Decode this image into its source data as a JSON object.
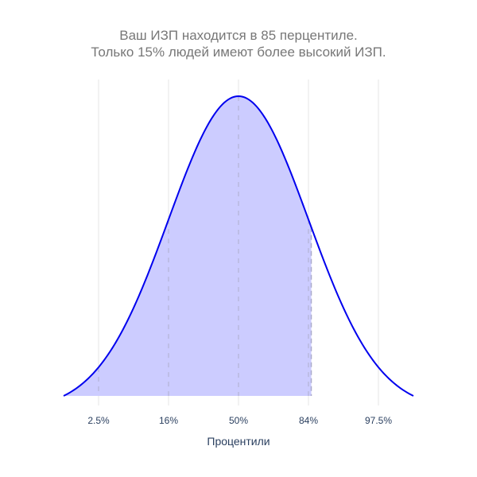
{
  "chart_data": {
    "type": "area",
    "title_line1": "Ваш ИЗП находится в 85 перцентиле.",
    "title_line2": "Только 15% людей имеют более высокий ИЗП.",
    "xlabel": "Процентили",
    "ylabel": "",
    "distribution": "normal",
    "x_range": [
      -2.5,
      2.5
    ],
    "peak": 0,
    "ticks": [
      {
        "value": -2,
        "label": "2.5%"
      },
      {
        "value": -1,
        "label": "16%"
      },
      {
        "value": 0,
        "label": "50%"
      },
      {
        "value": 1,
        "label": "84%"
      },
      {
        "value": 2,
        "label": "97.5%"
      }
    ],
    "shaded_until": 1.04,
    "grid": true,
    "colors": {
      "line": "#0000ee",
      "fill": "#ccccff",
      "grid": "#e5e5e5",
      "text": "#2a3f5f"
    }
  }
}
